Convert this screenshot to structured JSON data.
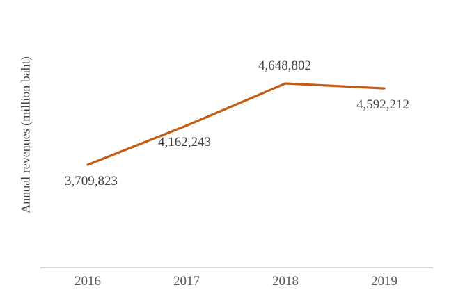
{
  "chart_data": {
    "type": "line",
    "title": "",
    "xlabel": "",
    "ylabel": "Annual revenues (million baht)",
    "categories": [
      "2016",
      "2017",
      "2018",
      "2019"
    ],
    "series": [
      {
        "name": "Annual revenues",
        "values": [
          3709823,
          4162243,
          4648802,
          4592212
        ]
      }
    ],
    "data_labels": [
      "3,709,823",
      "4,162,243",
      "4,648,802",
      "4,592,212"
    ],
    "data_label_positions": [
      "below",
      "below",
      "above",
      "below"
    ],
    "legend_position": "none",
    "grid": false,
    "markers": false,
    "colors": {
      "line": "#C55A11",
      "data_label_text": "#404040",
      "tick_label_text": "#595959",
      "y_title_text": "#404040",
      "axis_line": "#D9D9D9",
      "background": "#FFFFFF"
    }
  }
}
